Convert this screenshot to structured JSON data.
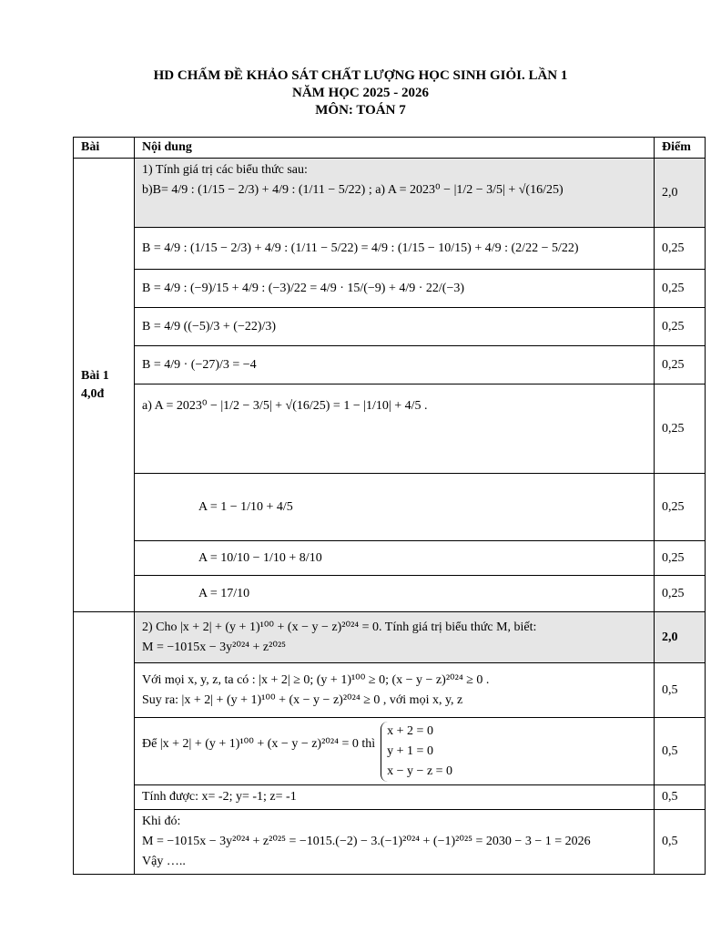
{
  "header": {
    "title_lines": [
      "HD CHẤM ĐỀ KHẢO SÁT CHẤT LƯỢNG HỌC SINH GIỎI. LẦN 1",
      "NĂM HỌC 2025 - 2026",
      "MÔN: TOÁN 7"
    ]
  },
  "table": {
    "columns": [
      "Bài",
      "Nội dung",
      "Điểm"
    ],
    "bai1": {
      "label": "Bài 1",
      "points": "4,0đ"
    },
    "rows": [
      {
        "content": [
          "1) Tính giá trị các biểu thức sau:",
          "b)B= 4/9 : (1/15 − 2/3) + 4/9 : (1/11 − 5/22) ; a) A = 2023⁰ − |1/2 − 3/5| + √(16/25)"
        ],
        "score": "2,0"
      },
      {
        "content": [
          "B = 4/9 : (1/15 − 2/3) + 4/9 : (1/11 − 5/22) = 4/9 : (1/15 − 10/15) + 4/9 : (2/22 − 5/22)"
        ],
        "score": "0,25"
      },
      {
        "content": [
          "B = 4/9 : (−9)/15 + 4/9 : (−3)/22 = 4/9 · 15/(−9) + 4/9 · 22/(−3)"
        ],
        "score": "0,25"
      },
      {
        "content": [
          "B = 4/9 ((−5)/3 + (−22)/3)"
        ],
        "score": "0,25"
      },
      {
        "content": [
          "B = 4/9 · (−27)/3 = −4"
        ],
        "score": "0,25"
      },
      {
        "content": [
          "a) A = 2023⁰ − |1/2 − 3/5| + √(16/25) = 1 − |1/10| + 4/5 ."
        ],
        "score": "0,25"
      },
      {
        "content": [
          "A = 1 − 1/10 + 4/5"
        ],
        "score": "0,25"
      },
      {
        "content": [
          "A = 10/10 − 1/10 + 8/10"
        ],
        "score": "0,25"
      },
      {
        "content": [
          "A = 17/10"
        ],
        "score": "0,25"
      },
      {
        "content": [
          "2) Cho |x + 2| + (y + 1)¹⁰⁰ + (x − y − z)²⁰²⁴ = 0. Tính giá trị biểu thức M, biết:",
          "M = −1015x − 3y²⁰²⁴ + z²⁰²⁵"
        ],
        "score": "2,0"
      },
      {
        "content": [
          "Với mọi x, y, z, ta có : |x + 2| ≥ 0; (y + 1)¹⁰⁰ ≥ 0; (x − y − z)²⁰²⁴ ≥ 0 .",
          "Suy ra: |x + 2| + (y + 1)¹⁰⁰ + (x − y − z)²⁰²⁴ ≥ 0 , với mọi x, y, z"
        ],
        "score": "0,5"
      },
      {
        "content": [
          "Để |x + 2| + (y + 1)¹⁰⁰ + (x − y − z)²⁰²⁴ = 0 thì"
        ],
        "system": [
          "x + 2 = 0",
          "y + 1 = 0",
          "x − y − z = 0"
        ],
        "score": "0,5"
      },
      {
        "content": [
          "Tính được: x= -2; y= -1; z= -1"
        ],
        "score": "0,5"
      },
      {
        "content": [
          "Khi đó:",
          "M = −1015x − 3y²⁰²⁴ + z²⁰²⁵ = −1015.(−2) − 3.(−1)²⁰²⁴ + (−1)²⁰²⁵ = 2030 − 3 − 1 = 2026",
          "Vậy ….."
        ],
        "score": "0,5"
      }
    ]
  }
}
